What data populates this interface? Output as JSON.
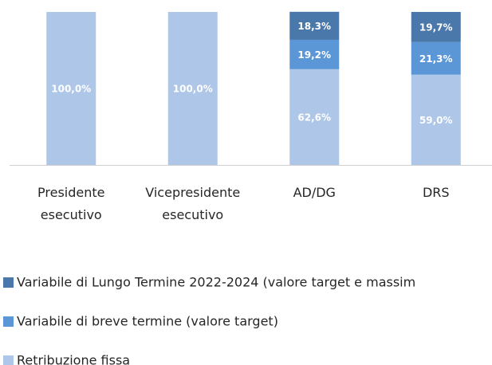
{
  "chart_data": {
    "type": "stacked_bar",
    "categories": [
      "Presidente esecutivo",
      "Vicepresidente esecutivo",
      "AD/DG",
      "DRS"
    ],
    "series": [
      {
        "name": "Retribuzione fissa",
        "color": "#aec6e8",
        "values": [
          100.0,
          100.0,
          62.6,
          59.0
        ],
        "value_labels": [
          "100,0%",
          "100,0%",
          "62,6%",
          "59,0%"
        ]
      },
      {
        "name": "Variabile di breve termine (valore target)",
        "color": "#5b97d6",
        "values": [
          null,
          null,
          19.2,
          21.3
        ],
        "value_labels": [
          null,
          null,
          "19,2%",
          "21,3%"
        ]
      },
      {
        "name": "Variabile di Lungo Termine 2022-2024 (valore target e massim",
        "color": "#4a78aa",
        "values": [
          null,
          null,
          18.3,
          19.7
        ],
        "value_labels": [
          null,
          null,
          "18,3%",
          "19,7%"
        ]
      }
    ],
    "ylim": [
      0,
      100
    ],
    "legend": "bottom"
  }
}
